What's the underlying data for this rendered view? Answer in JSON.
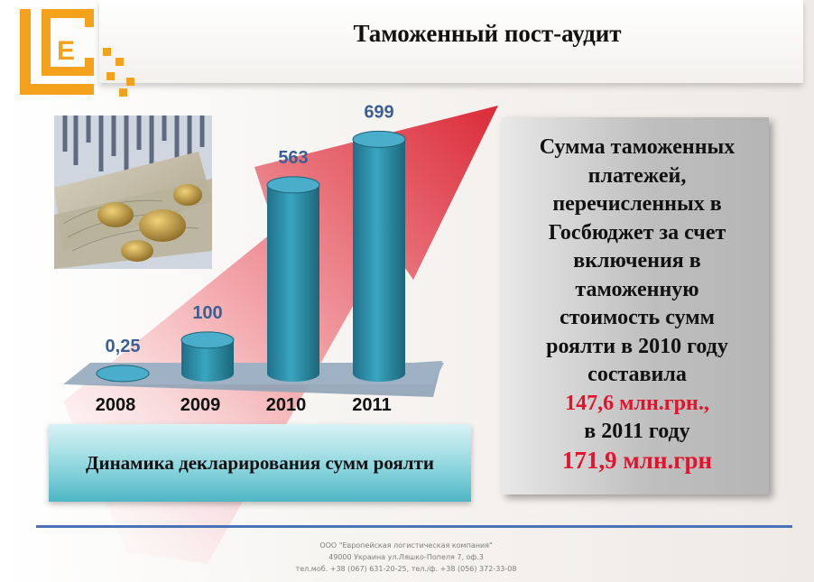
{
  "header": {
    "title": "Таможенный пост-аудит",
    "logo_letter": "E"
  },
  "chart_data": {
    "type": "bar",
    "categories": [
      "2008",
      "2009",
      "2010",
      "2011"
    ],
    "values": [
      0.25,
      100,
      563,
      699
    ],
    "value_labels": [
      "0,25",
      "100",
      "563",
      "699"
    ],
    "title": "Динамика декларирования сумм роялти",
    "xlabel": "",
    "ylabel": "",
    "ylim": [
      0,
      700
    ],
    "grid": false,
    "bar_color": "#2a8aa6",
    "label_color": "#3b5f93",
    "trend_arrow_color": "#e8232f"
  },
  "info": {
    "text_lines": [
      "Сумма таможенных",
      "платежей,",
      "перечисленных в",
      "Госбюджет за счет",
      "включения в",
      "таможенную",
      "стоимость сумм",
      "роялти в 2010 году",
      "составила"
    ],
    "amount_2010": "147,6 млн.грн.,",
    "middle_text": "в 2011 году",
    "amount_2011": "171,9 млн.грн",
    "accent_color": "#e3132c"
  },
  "footer": {
    "company": "ООО \"Европейская логистическая компания\"",
    "address": "49000 Украина ул.Ляшко-Попеля 7, оф.3",
    "phones": "тел.моб. +38 (067) 631-20-25, тел./ф. +38 (056) 372-33-08"
  }
}
